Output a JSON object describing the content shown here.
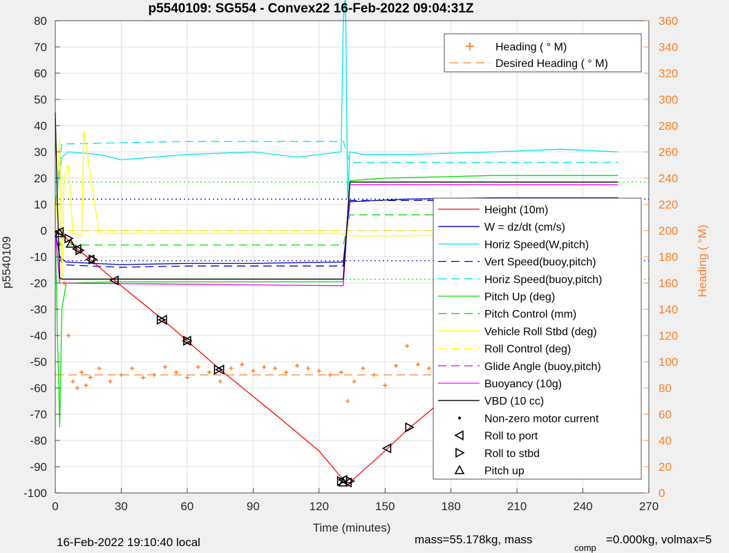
{
  "chart_data": {
    "type": "line",
    "title": "p5540109: SG554 - Convex22 16-Feb-2022 09:04:31Z",
    "xlabel": "Time (minutes)",
    "ylabel_left": "p5540109",
    "ylabel_right": "Heading (   °M)",
    "xlim": [
      0,
      270
    ],
    "ylim_left": [
      -100,
      80
    ],
    "ylim_right": [
      0,
      360
    ],
    "x_ticks": [
      0,
      30,
      60,
      90,
      120,
      150,
      180,
      210,
      240,
      270
    ],
    "y_ticks_left": [
      -100,
      -90,
      -80,
      -70,
      -60,
      -50,
      -40,
      -30,
      -20,
      -10,
      0,
      10,
      20,
      30,
      40,
      50,
      60,
      70,
      80
    ],
    "y_ticks_right": [
      0,
      20,
      40,
      60,
      80,
      100,
      120,
      140,
      160,
      180,
      200,
      220,
      240,
      260,
      280,
      300,
      320,
      340,
      360
    ],
    "grid": true,
    "footer_left": "16-Feb-2022 19:10:40 local",
    "footer_right": "mass=55.178kg, mass",
    "footer_sub": "comp",
    "footer_right2": "=0.000kg, volmax=5",
    "legend_heading": {
      "placement": "top-right",
      "entries": [
        {
          "label": "Heading (   ° M)",
          "color": "#ff7f27",
          "style": "plus"
        },
        {
          "label": "Desired Heading (     ° M)",
          "color": "#ff7f27",
          "style": "dash"
        }
      ]
    },
    "legend_main": {
      "placement": "right",
      "entries": [
        {
          "label": "Height (10m)",
          "color": "#ff0000",
          "style": "solid"
        },
        {
          "label": "W = dz/dt (cm/s)",
          "color": "#0000cc",
          "style": "solid"
        },
        {
          "label": "Horiz Speed(W,pitch)",
          "color": "#00e5ee",
          "style": "solid"
        },
        {
          "label": "Vert Speed(buoy,pitch)",
          "color": "#0000cc",
          "style": "dash"
        },
        {
          "label": "Horiz Speed(buoy,pitch)",
          "color": "#00e5ee",
          "style": "dash"
        },
        {
          "label": "Pitch Up (deg)",
          "color": "#00dd00",
          "style": "solid"
        },
        {
          "label": "Pitch Control (mm)",
          "color": "#00dd00",
          "style": "dash"
        },
        {
          "label": "Vehicle Roll Stbd (deg)",
          "color": "#ffff00",
          "style": "solid"
        },
        {
          "label": "Roll Control (deg)",
          "color": "#ffff00",
          "style": "dash"
        },
        {
          "label": "Glide Angle (buoy,pitch)",
          "color": "#ff00ff",
          "style": "dash"
        },
        {
          "label": "Buoyancy (10g)",
          "color": "#ff00ff",
          "style": "solid"
        },
        {
          "label": "VBD (10 cc)",
          "color": "#000000",
          "style": "solid"
        },
        {
          "label": "Non-zero motor current",
          "color": "#000000",
          "style": "dot"
        },
        {
          "label": "Roll to port",
          "color": "#000000",
          "style": "tri-left"
        },
        {
          "label": "Roll to stbd",
          "color": "#000000",
          "style": "tri-right"
        },
        {
          "label": "Pitch up",
          "color": "#000000",
          "style": "tri-up"
        }
      ]
    },
    "series": [
      {
        "name": "Height (10m)",
        "color": "#ff0000",
        "axis": "left",
        "x": [
          0,
          2,
          5,
          10,
          16,
          27,
          49,
          60,
          75,
          100,
          120,
          131,
          132,
          134,
          140,
          150,
          160,
          170,
          182,
          200,
          215,
          226,
          236,
          242,
          257
        ],
        "values": [
          0,
          -1,
          -3,
          -7,
          -11,
          -19,
          -34,
          -42,
          -53,
          -70,
          -84,
          -95,
          -96,
          -96,
          -91.5,
          -84,
          -76,
          -69,
          -60,
          -47,
          -32,
          -25,
          -17,
          -12,
          0
        ]
      },
      {
        "name": "W = dz/dt (cm/s)",
        "color": "#0000cc",
        "axis": "left",
        "x": [
          0,
          2,
          5,
          30,
          60,
          90,
          130,
          131,
          134,
          160,
          200,
          240,
          256
        ],
        "values": [
          0,
          -10,
          -12,
          -13,
          -12.5,
          -12.5,
          -12,
          -12,
          11,
          12,
          12.5,
          12.5,
          12.5
        ]
      },
      {
        "name": "Horiz Speed(W,pitch)",
        "color": "#00e5ee",
        "axis": "left",
        "x": [
          0,
          3,
          6,
          20,
          30,
          60,
          90,
          110,
          130,
          131,
          132,
          133,
          134,
          140,
          160,
          200,
          230,
          256
        ],
        "values": [
          10,
          28,
          30,
          29,
          27,
          29,
          30,
          28,
          30,
          80,
          90,
          12,
          30,
          29,
          29,
          30,
          31,
          30
        ]
      },
      {
        "name": "Vert Speed(buoy,pitch)",
        "color": "#0000cc",
        "axis": "left",
        "x": [
          0,
          3,
          30,
          60,
          90,
          130,
          131,
          134,
          180,
          220,
          256
        ],
        "values": [
          0,
          -13,
          -14,
          -13.5,
          -13.5,
          -13.5,
          -13.5,
          11.5,
          11.5,
          12,
          12
        ]
      },
      {
        "name": "Horiz Speed(buoy,pitch)",
        "color": "#00e5ee",
        "axis": "left",
        "x": [
          0,
          3,
          60,
          100,
          130,
          131,
          134,
          200,
          256
        ],
        "values": [
          10,
          33,
          34,
          34,
          34,
          34,
          26,
          26,
          26
        ]
      },
      {
        "name": "Pitch Up (deg)",
        "color": "#00dd00",
        "axis": "left",
        "x": [
          0,
          1,
          2,
          3,
          5,
          30,
          60,
          90,
          130,
          131,
          134,
          150,
          200,
          256
        ],
        "values": [
          0,
          -40,
          -75,
          -30,
          -20,
          -19.5,
          -19.5,
          -19.5,
          -19.5,
          -19.5,
          19,
          20,
          21,
          21
        ]
      },
      {
        "name": "Pitch Control (mm)",
        "color": "#00dd00",
        "axis": "left",
        "x": [
          0,
          3,
          131,
          134,
          256
        ],
        "values": [
          -5,
          -5.5,
          -5.5,
          6,
          6
        ]
      },
      {
        "name": "Vehicle Roll Stbd (deg)",
        "color": "#ffff00",
        "axis": "left",
        "x": [
          0,
          2,
          3,
          4,
          6,
          8,
          12,
          13,
          20,
          60,
          100,
          130,
          134,
          160,
          200,
          256
        ],
        "values": [
          0,
          35,
          -20,
          20,
          25,
          -1,
          -2,
          38,
          -1,
          -1,
          -1,
          -1,
          -2,
          -2,
          -1,
          -1
        ]
      },
      {
        "name": "Roll Control (deg)",
        "color": "#ffff00",
        "axis": "left",
        "x": [
          0,
          256
        ],
        "values": [
          0,
          0
        ]
      },
      {
        "name": "Glide Angle (buoy,pitch)",
        "color": "#ff00ff",
        "axis": "left",
        "x": [
          0,
          131,
          134,
          256
        ],
        "values": [
          0,
          0,
          0,
          0
        ]
      },
      {
        "name": "Buoyancy (10g)",
        "color": "#ff00ff",
        "axis": "left",
        "x": [
          0,
          2,
          131,
          134,
          256
        ],
        "values": [
          0,
          -20,
          -21,
          17.5,
          17.5
        ]
      },
      {
        "name": "VBD (10 cc)",
        "color": "#000000",
        "axis": "left",
        "x": [
          0,
          1,
          2,
          3,
          131,
          134,
          256
        ],
        "values": [
          45,
          10,
          -18,
          -18.5,
          -18.5,
          18.5,
          18.5
        ]
      },
      {
        "name": "Heading (   ° M)",
        "color": "#ff7f27",
        "axis": "right",
        "style": "plus",
        "x": [
          2,
          4,
          6,
          8,
          10,
          12,
          14,
          16,
          20,
          25,
          30,
          35,
          40,
          45,
          50,
          55,
          60,
          65,
          70,
          75,
          80,
          85,
          90,
          95,
          100,
          105,
          110,
          115,
          120,
          125,
          130,
          133,
          136,
          140,
          145,
          150,
          155,
          160,
          165,
          170,
          175,
          180,
          185,
          190,
          195,
          200,
          205,
          210,
          215,
          220,
          225,
          230,
          235,
          240,
          245,
          250,
          256
        ],
        "values": [
          190,
          160,
          120,
          85,
          80,
          92,
          82,
          88,
          95,
          85,
          90,
          95,
          88,
          90,
          96,
          92,
          88,
          96,
          92,
          85,
          95,
          98,
          93,
          96,
          95,
          92,
          97,
          95,
          93,
          90,
          92,
          70,
          85,
          95,
          90,
          82,
          97,
          112,
          98,
          95,
          100,
          98,
          90,
          92,
          88,
          95,
          92,
          88,
          96,
          90,
          92,
          88,
          95,
          90,
          92,
          90,
          91
        ]
      },
      {
        "name": "Desired Heading (     ° M)",
        "color": "#ff7f27",
        "axis": "right",
        "style": "dash",
        "x": [
          0,
          256
        ],
        "values": [
          90,
          90
        ]
      }
    ],
    "reference_lines": [
      {
        "color": "#00dd00",
        "style": "dot",
        "y": 18.5
      },
      {
        "color": "#00dd00",
        "style": "dot",
        "y": -18.5
      },
      {
        "color": "#0000cc",
        "style": "dot",
        "y": 12
      },
      {
        "color": "#0000cc",
        "style": "dot",
        "y": -11.5
      }
    ],
    "markers": {
      "roll_to_port": {
        "x": [
          2,
          10,
          16,
          27,
          49,
          60,
          75,
          131,
          133,
          151,
          182,
          215,
          226,
          236,
          257
        ],
        "y": [
          -0.5,
          -7,
          -11,
          -19,
          -34,
          -42,
          -53,
          -95,
          -96,
          -83,
          -59,
          -32,
          -25,
          -16,
          0
        ]
      },
      "roll_to_stbd": {
        "x": [
          6,
          11,
          17,
          48,
          60,
          74,
          130,
          134,
          161,
          183,
          216,
          225,
          237,
          243
        ],
        "y": [
          -3,
          -7.5,
          -11,
          -34,
          -42,
          -53,
          -95.5,
          -95.5,
          -75,
          -60,
          -32,
          -25,
          -17,
          -12
        ]
      },
      "pitch_up": {
        "x": [
          2,
          7,
          131
        ],
        "y": [
          -1,
          -5,
          -96
        ]
      }
    }
  }
}
